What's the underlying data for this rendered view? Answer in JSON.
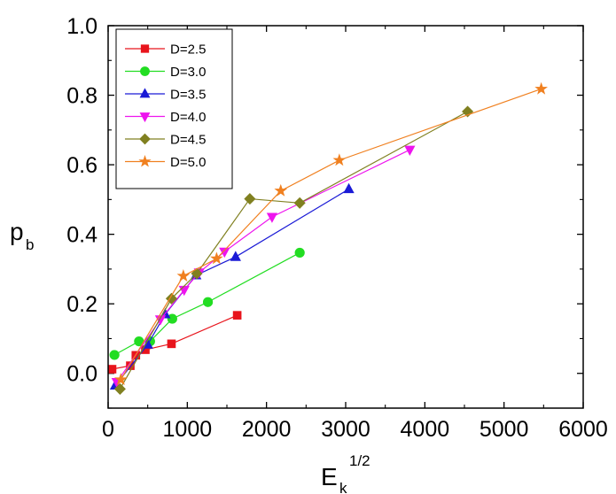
{
  "chart_data": {
    "type": "line",
    "xlabel": "E",
    "xlabel_sub": "k",
    "xlabel_sup": "1/2",
    "ylabel": "p",
    "ylabel_sub": "b",
    "xlim": [
      0,
      6000
    ],
    "ylim": [
      -0.1,
      1.0
    ],
    "xticks": [
      0,
      1000,
      2000,
      3000,
      4000,
      5000,
      6000
    ],
    "xtick_labels": [
      "0",
      "1000",
      "2000",
      "3000",
      "4000",
      "5000",
      "6000"
    ],
    "yticks": [
      0.0,
      0.2,
      0.4,
      0.6,
      0.8,
      1.0
    ],
    "ytick_labels": [
      "0.0",
      "0.2",
      "0.4",
      "0.6",
      "0.8",
      "1.0"
    ],
    "grid": false,
    "legend_position": "top-left",
    "series": [
      {
        "name": "D=2.5",
        "color": "#e8141c",
        "marker": "square",
        "x": [
          50,
          280,
          350,
          470,
          800,
          1630
        ],
        "y": [
          0.012,
          0.022,
          0.052,
          0.068,
          0.085,
          0.167
        ]
      },
      {
        "name": "D=3.0",
        "color": "#22dd22",
        "marker": "circle",
        "x": [
          80,
          390,
          530,
          810,
          1260,
          2420
        ],
        "y": [
          0.053,
          0.092,
          0.092,
          0.157,
          0.205,
          0.347
        ]
      },
      {
        "name": "D=3.5",
        "color": "#1a1ad6",
        "marker": "triangle-up",
        "x": [
          90,
          500,
          720,
          1110,
          1610,
          3040
        ],
        "y": [
          -0.035,
          0.083,
          0.17,
          0.282,
          0.335,
          0.53
        ]
      },
      {
        "name": "D=4.0",
        "color": "#ee14ee",
        "marker": "triangle-down",
        "x": [
          110,
          660,
          960,
          1150,
          1470,
          2070,
          3810
        ],
        "y": [
          -0.025,
          0.155,
          0.24,
          0.29,
          0.35,
          0.45,
          0.643
        ]
      },
      {
        "name": "D=4.5",
        "color": "#808020",
        "marker": "diamond",
        "x": [
          150,
          800,
          1120,
          1790,
          2420,
          4540
        ],
        "y": [
          -0.045,
          0.215,
          0.287,
          0.502,
          0.49,
          0.753
        ]
      },
      {
        "name": "D=5.0",
        "color": "#f08020",
        "marker": "star",
        "x": [
          160,
          950,
          1370,
          2180,
          2920,
          5470
        ],
        "y": [
          -0.018,
          0.28,
          0.33,
          0.525,
          0.613,
          0.818
        ]
      }
    ]
  }
}
